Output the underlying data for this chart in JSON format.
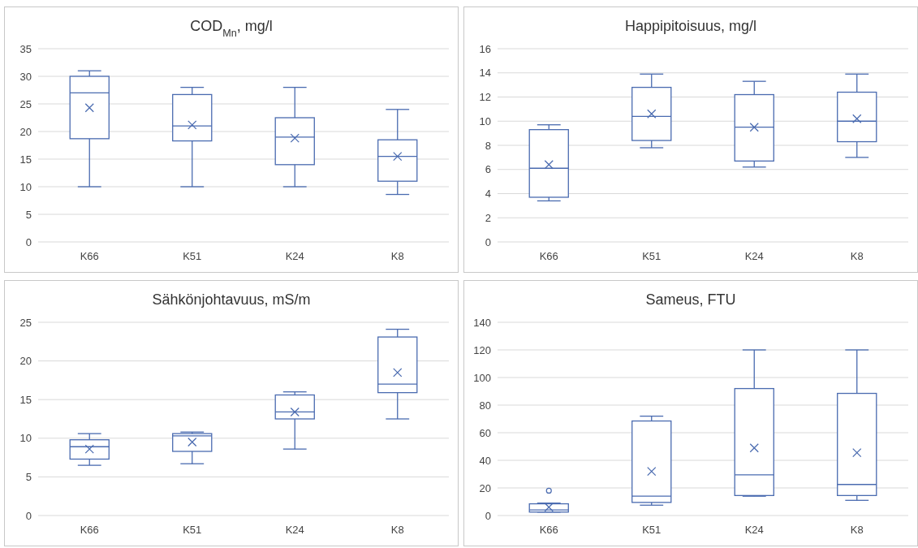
{
  "chart_data": [
    {
      "type": "box",
      "title": "COD$_{Mn}$, mg/l",
      "categories": [
        "K66",
        "K51",
        "K24",
        "K8"
      ],
      "ylim": [
        0,
        35
      ],
      "yticks": [
        0,
        5,
        10,
        15,
        20,
        25,
        30,
        35
      ],
      "grid": "y",
      "color": "#4a6bb0",
      "boxes": [
        {
          "low": 10,
          "q1": 18.7,
          "median": 27,
          "q3": 30,
          "high": 31,
          "mean": 24.3
        },
        {
          "low": 10,
          "q1": 18.3,
          "median": 21,
          "q3": 26.7,
          "high": 28,
          "mean": 21.2
        },
        {
          "low": 10,
          "q1": 14,
          "median": 19,
          "q3": 22.5,
          "high": 28,
          "mean": 18.8
        },
        {
          "low": 8.6,
          "q1": 11,
          "median": 15.5,
          "q3": 18.5,
          "high": 24,
          "mean": 15.5
        }
      ]
    },
    {
      "type": "box",
      "title": "Happipitoisuus, mg/l",
      "categories": [
        "K66",
        "K51",
        "K24",
        "K8"
      ],
      "ylim": [
        0,
        16
      ],
      "yticks": [
        0,
        2,
        4,
        6,
        8,
        10,
        12,
        14,
        16
      ],
      "grid": "y",
      "color": "#4a6bb0",
      "boxes": [
        {
          "low": 3.4,
          "q1": 3.7,
          "median": 6.1,
          "q3": 9.3,
          "high": 9.7,
          "mean": 6.4
        },
        {
          "low": 7.8,
          "q1": 8.4,
          "median": 10.4,
          "q3": 12.8,
          "high": 13.9,
          "mean": 10.6
        },
        {
          "low": 6.2,
          "q1": 6.7,
          "median": 9.5,
          "q3": 12.2,
          "high": 13.3,
          "mean": 9.5
        },
        {
          "low": 7,
          "q1": 8.3,
          "median": 10,
          "q3": 12.4,
          "high": 13.9,
          "mean": 10.2
        }
      ]
    },
    {
      "type": "box",
      "title": "Sähkönjohtavuus, mS/m",
      "categories": [
        "K66",
        "K51",
        "K24",
        "K8"
      ],
      "ylim": [
        0,
        25
      ],
      "yticks": [
        0,
        5,
        10,
        15,
        20,
        25
      ],
      "grid": "y",
      "color": "#4a6bb0",
      "boxes": [
        {
          "low": 6.5,
          "q1": 7.3,
          "median": 8.9,
          "q3": 9.8,
          "high": 10.6,
          "mean": 8.6
        },
        {
          "low": 6.7,
          "q1": 8.3,
          "median": 10.3,
          "q3": 10.6,
          "high": 10.8,
          "mean": 9.5
        },
        {
          "low": 8.6,
          "q1": 12.5,
          "median": 13.4,
          "q3": 15.6,
          "high": 16,
          "mean": 13.4
        },
        {
          "low": 12.5,
          "q1": 15.9,
          "median": 17,
          "q3": 23.1,
          "high": 24.1,
          "mean": 18.5
        }
      ]
    },
    {
      "type": "box",
      "title": "Sameus, FTU",
      "categories": [
        "K66",
        "K51",
        "K24",
        "K8"
      ],
      "ylim": [
        0,
        140
      ],
      "yticks": [
        0,
        20,
        40,
        60,
        80,
        100,
        120,
        140
      ],
      "grid": "y",
      "color": "#4a6bb0",
      "boxes": [
        {
          "low": 2.5,
          "q1": 2.5,
          "median": 4,
          "q3": 8.5,
          "high": 9,
          "mean": 6,
          "outliers": [
            18
          ]
        },
        {
          "low": 7.5,
          "q1": 9.5,
          "median": 14,
          "q3": 68.5,
          "high": 72,
          "mean": 32
        },
        {
          "low": 14,
          "q1": 14.5,
          "median": 29.5,
          "q3": 92,
          "high": 120,
          "mean": 49
        },
        {
          "low": 11,
          "q1": 14.5,
          "median": 22.5,
          "q3": 88.5,
          "high": 120,
          "mean": 45.5
        }
      ]
    }
  ]
}
